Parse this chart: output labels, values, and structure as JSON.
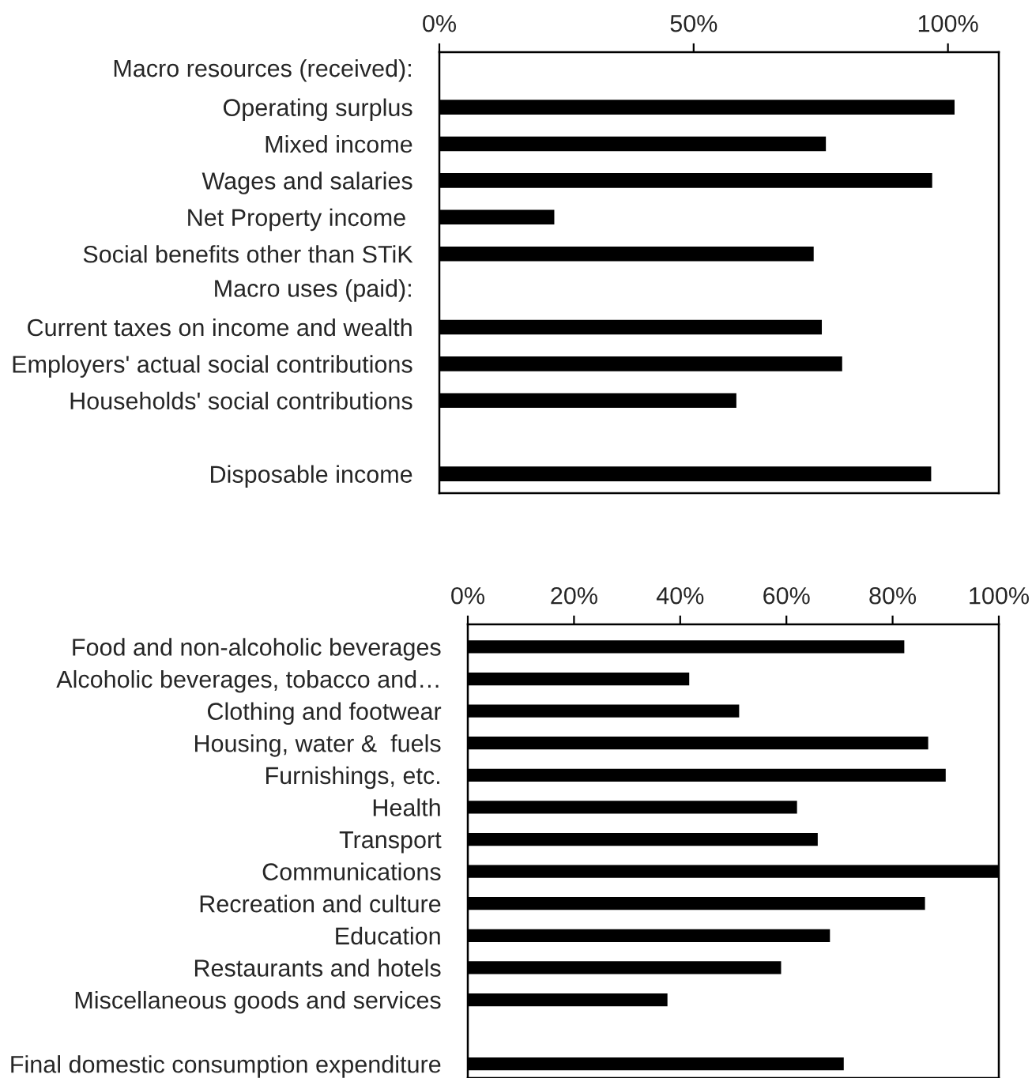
{
  "chart_data": [
    {
      "type": "bar",
      "orientation": "horizontal",
      "annotations": [
        "Macro resources (received):",
        "Macro uses (paid):"
      ],
      "categories": [
        null,
        "Operating surplus",
        "Mixed income",
        "Wages and salaries",
        "Net Property income ",
        "Social benefits other than STiK",
        null,
        "Current taxes on income and wealth",
        "Employers' actual social contributions",
        "Households' social contributions",
        null,
        "Disposable income"
      ],
      "values": [
        null,
        101.3,
        76,
        96.9,
        22.6,
        73.6,
        null,
        75.2,
        79.2,
        58.4,
        null,
        96.7
      ],
      "color": "#000000",
      "xlim": [
        0,
        110
      ],
      "xticks": [
        {
          "value": 0,
          "label": "0%"
        },
        {
          "value": 50,
          "label": "50%"
        },
        {
          "value": 100,
          "label": "100%"
        }
      ],
      "grid": false,
      "legend": false
    },
    {
      "type": "bar",
      "orientation": "horizontal",
      "categories": [
        "Food and non-alcoholic beverages",
        "Alcoholic beverages, tobacco and…",
        "Clothing and footwear",
        "Housing, water &  fuels",
        "Furnishings, etc.",
        "Health",
        "Transport",
        "Communications",
        "Recreation and culture",
        "Education",
        "Restaurants and hotels",
        "Miscellaneous goods and services",
        null,
        "Final domestic consumption expenditure"
      ],
      "values": [
        82.2,
        41.7,
        51.1,
        86.7,
        90.0,
        62.0,
        65.9,
        100,
        86.1,
        68.2,
        59.0,
        37.6,
        null,
        70.8
      ],
      "color": "#000000",
      "xlim": [
        0,
        100
      ],
      "xticks": [
        {
          "value": 0,
          "label": "0%"
        },
        {
          "value": 20,
          "label": "20%"
        },
        {
          "value": 40,
          "label": "40%"
        },
        {
          "value": 60,
          "label": "60%"
        },
        {
          "value": 80,
          "label": "80%"
        },
        {
          "value": 100,
          "label": "100%"
        }
      ],
      "grid": false,
      "legend": false
    }
  ]
}
